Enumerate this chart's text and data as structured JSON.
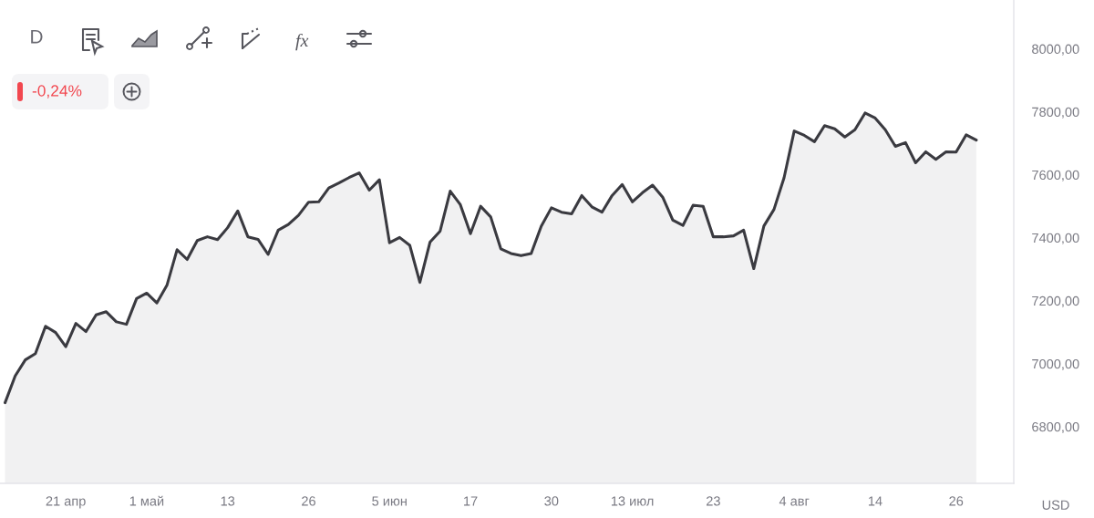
{
  "chart_data": {
    "type": "area",
    "categories": [
      null,
      null,
      null,
      null,
      null,
      null,
      "21 апр",
      null,
      null,
      null,
      null,
      null,
      null,
      null,
      "1 май",
      null,
      null,
      null,
      null,
      null,
      null,
      null,
      "13",
      null,
      null,
      null,
      null,
      null,
      null,
      null,
      "26",
      null,
      null,
      null,
      null,
      null,
      null,
      null,
      "5 июн",
      null,
      null,
      null,
      null,
      null,
      null,
      null,
      "17",
      null,
      null,
      null,
      null,
      null,
      null,
      null,
      "30",
      null,
      null,
      null,
      null,
      null,
      null,
      null,
      "13 июл",
      null,
      null,
      null,
      null,
      null,
      null,
      null,
      "23",
      null,
      null,
      null,
      null,
      null,
      null,
      null,
      "4 авг",
      null,
      null,
      null,
      null,
      null,
      null,
      null,
      "14",
      null,
      null,
      null,
      null,
      null,
      null,
      null,
      "26",
      null,
      null
    ],
    "series": [
      {
        "color": "#3a3a40",
        "values": [
          6876,
          6961,
          7012,
          7032,
          7119,
          7099,
          7054,
          7128,
          7102,
          7155,
          7165,
          7133,
          7125,
          7207,
          7224,
          7193,
          7249,
          7362,
          7331,
          7391,
          7403,
          7394,
          7432,
          7485,
          7403,
          7395,
          7347,
          7424,
          7442,
          7471,
          7513,
          7514,
          7558,
          7574,
          7591,
          7606,
          7551,
          7584,
          7384,
          7401,
          7376,
          7258,
          7386,
          7421,
          7548,
          7505,
          7413,
          7500,
          7466,
          7365,
          7350,
          7343,
          7350,
          7437,
          7495,
          7481,
          7476,
          7534,
          7498,
          7481,
          7534,
          7569,
          7514,
          7543,
          7567,
          7529,
          7456,
          7439,
          7503,
          7500,
          7403,
          7403,
          7406,
          7424,
          7302,
          7437,
          7490,
          7591,
          7739,
          7725,
          7705,
          7756,
          7746,
          7720,
          7743,
          7796,
          7780,
          7743,
          7690,
          7702,
          7638,
          7673,
          7649,
          7673,
          7672,
          7727,
          7710
        ]
      }
    ],
    "ylim": [
      6620,
      8155
    ],
    "yticks": [
      {
        "value": 6800,
        "label": "6800,00"
      },
      {
        "value": 7000,
        "label": "7000,00"
      },
      {
        "value": 7200,
        "label": "7200,00"
      },
      {
        "value": 7400,
        "label": "7400,00"
      },
      {
        "value": 7600,
        "label": "7600,00"
      },
      {
        "value": 7800,
        "label": "7800,00"
      },
      {
        "value": 8000,
        "label": "8000,00"
      }
    ],
    "ylabel": "USD",
    "annotations": [
      "D",
      "-0,24%"
    ],
    "grid": false,
    "marker": "none",
    "line_style": "solid"
  }
}
